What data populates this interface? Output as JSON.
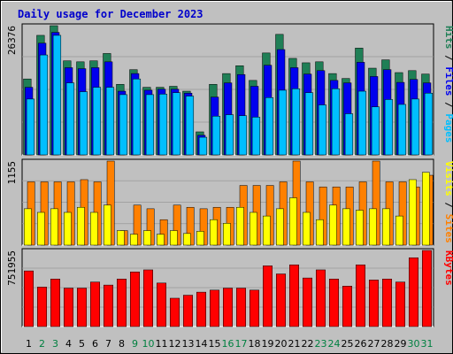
{
  "chart_data": {
    "type": "bar",
    "title": "Daily usage for December 2023",
    "categories": [
      "1",
      "2",
      "3",
      "4",
      "5",
      "6",
      "7",
      "8",
      "9",
      "10",
      "11",
      "12",
      "13",
      "14",
      "15",
      "16",
      "17",
      "18",
      "19",
      "20",
      "21",
      "22",
      "23",
      "24",
      "25",
      "26",
      "27",
      "28",
      "29",
      "30",
      "31"
    ],
    "weekend_days": [
      "2",
      "3",
      "9",
      "10",
      "16",
      "17",
      "23",
      "24",
      "30",
      "31"
    ],
    "colors": {
      "hits": "#1f7f56",
      "files": "#0000ee",
      "pages": "#00bfff",
      "visits": "#ffff00",
      "sites": "#ff8000",
      "kbytes": "#ff0000",
      "weekday_label": "#000000",
      "weekend_label": "#008040",
      "background": "#c0c0c0"
    },
    "panels": [
      {
        "name": "hits-files-pages",
        "ymax_label": "26376",
        "ymax": 26376,
        "right_labels": [
          {
            "text": "Pages",
            "color": "#00bfff"
          },
          {
            "text": " / ",
            "color": "#000000"
          },
          {
            "text": "Files",
            "color": "#0000ee"
          },
          {
            "text": " / ",
            "color": "#000000"
          },
          {
            "text": "Hits",
            "color": "#1f7f56"
          }
        ],
        "series": [
          {
            "name": "Hits",
            "values": [
              15500,
              24400,
              26376,
              19200,
              19000,
              19200,
              20700,
              14400,
              17400,
              13800,
              13800,
              14000,
              13000,
              4700,
              14400,
              16600,
              18200,
              15200,
              20800,
              24600,
              19700,
              18800,
              19000,
              16600,
              15600,
              21800,
              17700,
              19400,
              16800,
              17200,
              16500
            ]
          },
          {
            "name": "Files",
            "values": [
              13800,
              22800,
              25000,
              17800,
              17600,
              17800,
              19000,
              13000,
              16600,
              13200,
              13400,
              13400,
              12600,
              4000,
              11800,
              14700,
              16400,
              14000,
              18300,
              21500,
              17800,
              16500,
              17200,
              15200,
              14700,
              18900,
              16000,
              17400,
              14800,
              15400,
              14700
            ]
          },
          {
            "name": "Pages",
            "values": [
              11400,
              20400,
              24400,
              14700,
              12900,
              13800,
              13800,
              12300,
              15500,
              12300,
              12400,
              12700,
              12000,
              3600,
              7900,
              8200,
              8000,
              7700,
              11700,
              13200,
              13500,
              12700,
              10200,
              13500,
              8400,
              13000,
              9800,
              11300,
              10300,
              11400,
              12600
            ]
          }
        ]
      },
      {
        "name": "visits-sites",
        "ymax_label": "1155",
        "ymax": 1155,
        "right_labels": [
          {
            "text": "Sites",
            "color": "#ff8000"
          },
          {
            "text": " / ",
            "color": "#000000"
          },
          {
            "text": "Visits",
            "color": "#ffff00"
          }
        ],
        "series": [
          {
            "name": "Sites",
            "values": [
              870,
              870,
              870,
              870,
              900,
              870,
              1155,
              200,
              550,
              500,
              350,
              550,
              520,
              500,
              520,
              520,
              820,
              820,
              820,
              870,
              1155,
              870,
              800,
              800,
              800,
              870,
              1155,
              870,
              870,
              800,
              960
            ]
          },
          {
            "name": "Visits",
            "values": [
              500,
              450,
              500,
              450,
              520,
              450,
              550,
              200,
              150,
              200,
              150,
              200,
              160,
              190,
              350,
              300,
              520,
              450,
              400,
              500,
              650,
              450,
              350,
              550,
              500,
              480,
              500,
              500,
              400,
              900,
              1000
            ]
          }
        ]
      },
      {
        "name": "kbytes",
        "ymax_label": "751955",
        "ymax": 751955,
        "right_labels": [
          {
            "text": "KBytes",
            "color": "#ff0000"
          }
        ],
        "series": [
          {
            "name": "KBytes",
            "values": [
              550000,
              390000,
              470000,
              380000,
              380000,
              440000,
              410000,
              470000,
              540000,
              560000,
              430000,
              280000,
              310000,
              340000,
              360000,
              380000,
              380000,
              360000,
              600000,
              520000,
              610000,
              480000,
              560000,
              470000,
              400000,
              610000,
              460000,
              470000,
              440000,
              680000,
              751955
            ]
          }
        ]
      }
    ]
  }
}
